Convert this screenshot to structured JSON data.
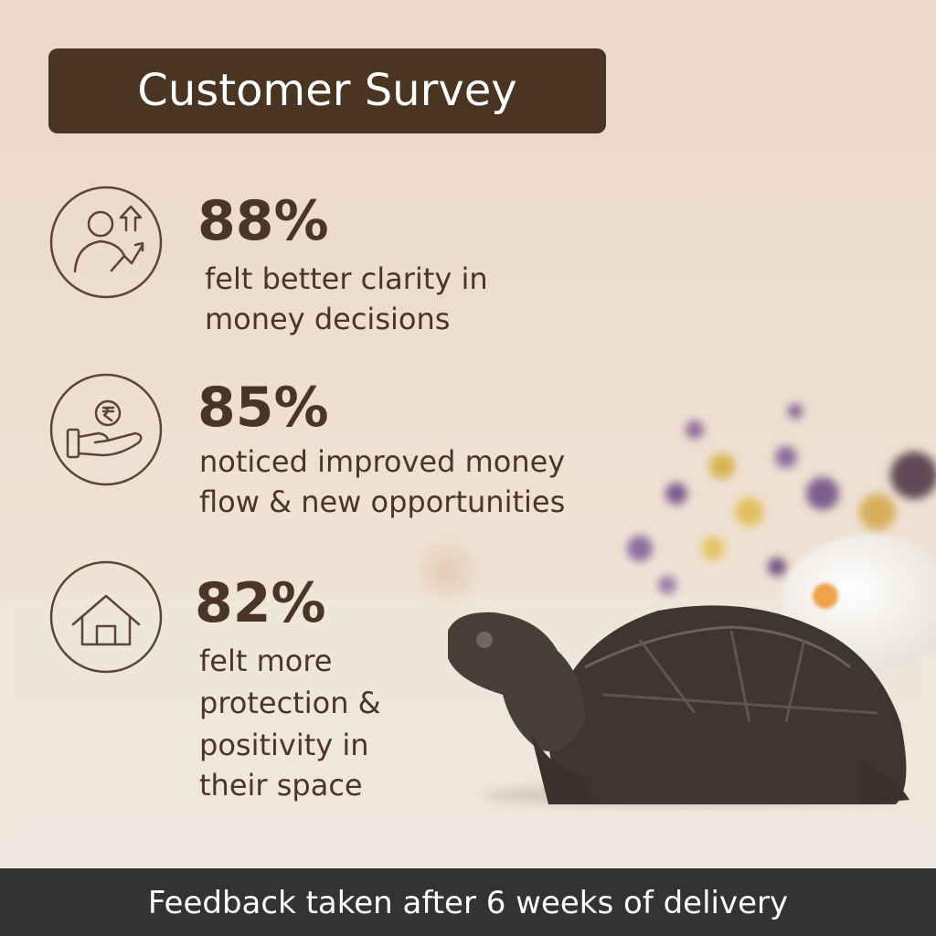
{
  "header": {
    "title": "Customer Survey"
  },
  "stats": [
    {
      "value": "88%",
      "lines": [
        "felt better clarity in",
        "money decisions"
      ]
    },
    {
      "value": "85%",
      "lines": [
        "noticed improved money",
        "flow & new opportunities"
      ]
    },
    {
      "value": "82%",
      "lines": [
        "felt more",
        "protection &",
        "positivity in",
        "their space"
      ]
    }
  ],
  "footer": {
    "text": "Feedback taken after 6 weeks of delivery"
  }
}
